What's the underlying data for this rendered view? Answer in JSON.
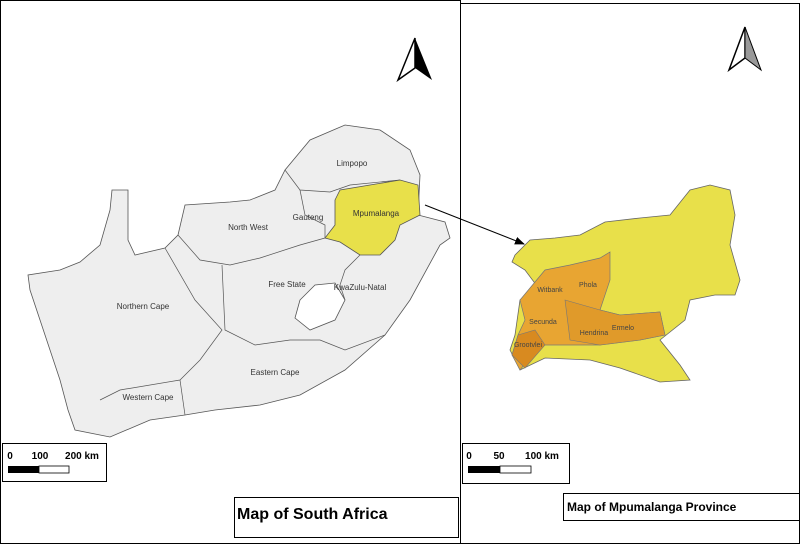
{
  "left_map": {
    "title": "Map of South Africa",
    "provinces": [
      {
        "label": "Limpopo"
      },
      {
        "label": "North West"
      },
      {
        "label": "Gauteng"
      },
      {
        "label": "Mpumalanga"
      },
      {
        "label": "Free State"
      },
      {
        "label": "KwaZulu-Natal"
      },
      {
        "label": "Northern Cape"
      },
      {
        "label": "Eastern Cape"
      },
      {
        "label": "Western Cape"
      }
    ],
    "scale_bar": {
      "labels": [
        "0",
        "100",
        "200 km"
      ]
    }
  },
  "right_map": {
    "title": "Map of Mpumalanga Province",
    "towns": [
      {
        "label": "Witbank"
      },
      {
        "label": "Phola"
      },
      {
        "label": "Secunda"
      },
      {
        "label": "Hendrina"
      },
      {
        "label": "Ermelo"
      },
      {
        "label": "Grootvlei"
      }
    ],
    "scale_bar": {
      "labels": [
        "0",
        "50",
        "100 km"
      ]
    }
  }
}
